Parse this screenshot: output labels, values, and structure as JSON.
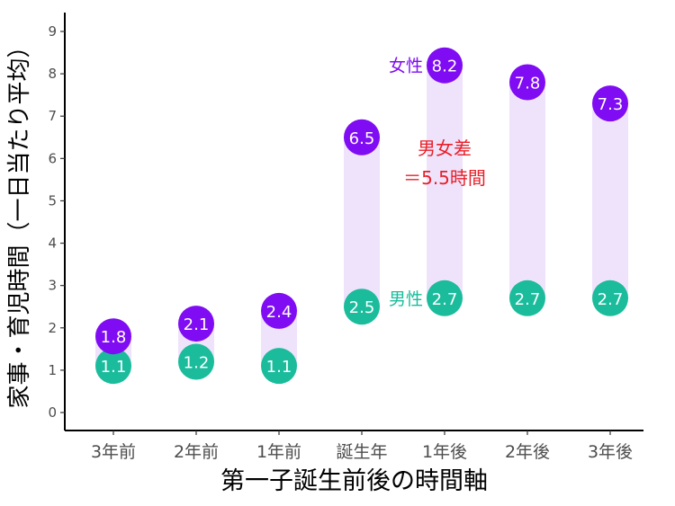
{
  "chart_data": {
    "type": "dumbbell",
    "xlabel": "第一子誕生前後の時間軸",
    "ylabel": "家事・育児時間（一日当たり平均）",
    "categories": [
      "3年前",
      "2年前",
      "1年前",
      "誕生年",
      "1年後",
      "2年後",
      "3年後"
    ],
    "ylim": [
      0,
      9
    ],
    "yticks": [
      0,
      1,
      2,
      3,
      4,
      5,
      6,
      7,
      8,
      9
    ],
    "grid": false,
    "series": [
      {
        "name": "女性",
        "color": "#7F0CF2",
        "values": [
          1.8,
          2.1,
          2.4,
          6.5,
          8.2,
          7.8,
          7.3
        ],
        "labels": [
          "1.8",
          "2.1",
          "2.4",
          "6.5",
          "8.2",
          "7.8",
          "7.3"
        ]
      },
      {
        "name": "男性",
        "color": "#1ABC9C",
        "values": [
          1.1,
          1.2,
          1.1,
          2.5,
          2.7,
          2.7,
          2.7
        ],
        "labels": [
          "1.1",
          "1.2",
          "1.1",
          "2.5",
          "2.7",
          "2.7",
          "2.7"
        ]
      }
    ],
    "range_bar_color": "#EFE3FC",
    "annotations": {
      "female_label": {
        "text": "女性",
        "category": "1年後",
        "y": 8.2
      },
      "male_label": {
        "text": "男性",
        "category": "1年後",
        "y": 2.7
      },
      "gap_label": {
        "line1": "男女差",
        "line2": "＝5.5時間",
        "color": "#E8202A",
        "category": "1年後",
        "y": 5.5
      }
    }
  }
}
